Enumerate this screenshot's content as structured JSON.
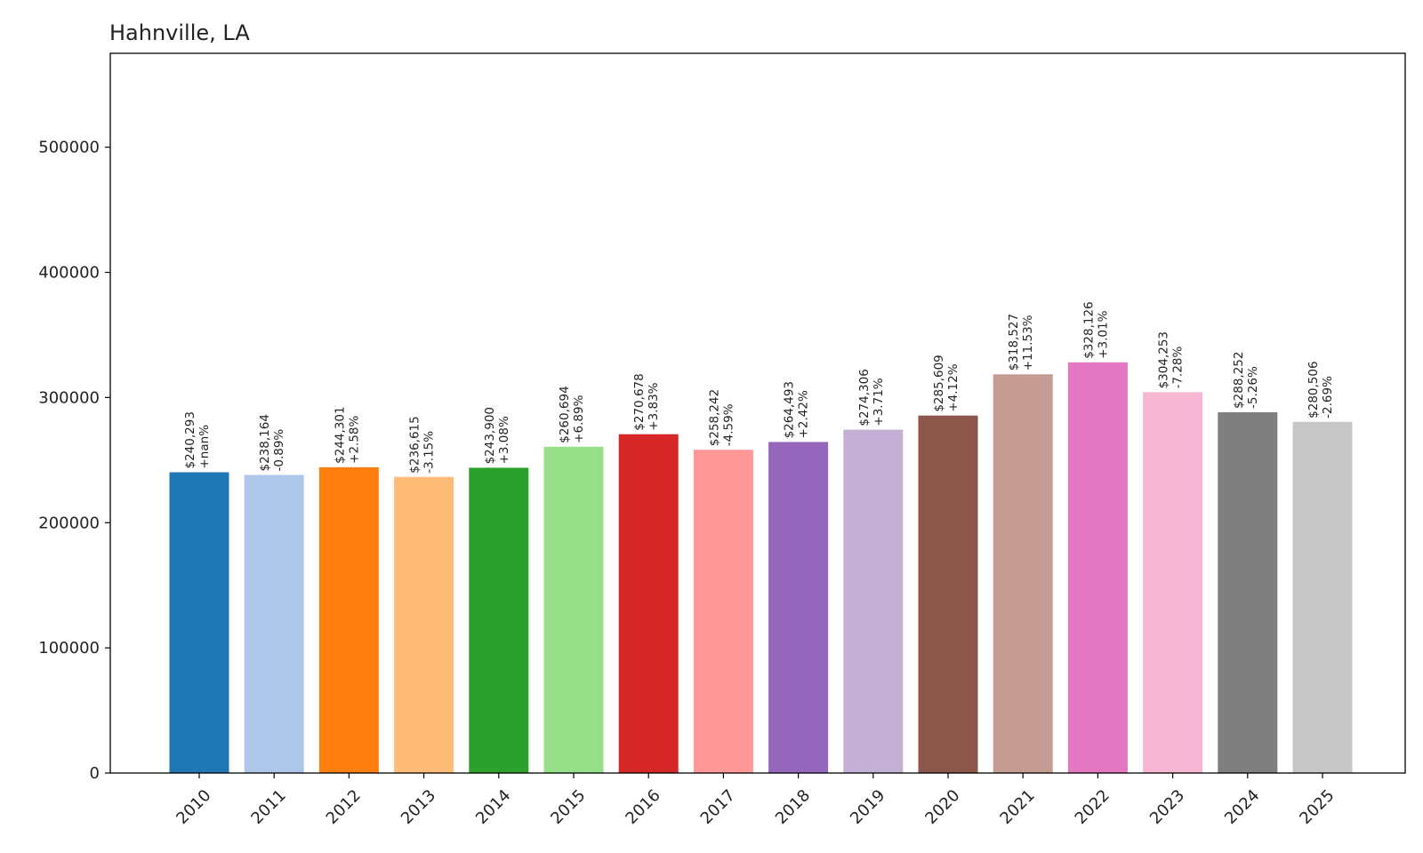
{
  "chart_data": {
    "type": "bar",
    "title": "Hahnville, LA",
    "xlabel": "",
    "ylabel": "",
    "ylim": [
      0,
      575000
    ],
    "yticks": [
      0,
      100000,
      200000,
      300000,
      400000,
      500000
    ],
    "grid": false,
    "categories": [
      "2010",
      "2011",
      "2012",
      "2013",
      "2014",
      "2015",
      "2016",
      "2017",
      "2018",
      "2019",
      "2020",
      "2021",
      "2022",
      "2023",
      "2024",
      "2025"
    ],
    "values": [
      240293,
      238164,
      244301,
      236615,
      243900,
      260694,
      270678,
      258242,
      264493,
      274306,
      285609,
      318527,
      328126,
      304253,
      288252,
      280506
    ],
    "value_labels": [
      "$240,293",
      "$238,164",
      "$244,301",
      "$236,615",
      "$243,900",
      "$260,694",
      "$270,678",
      "$258,242",
      "$264,493",
      "$274,306",
      "$285,609",
      "$318,527",
      "$328,126",
      "$304,253",
      "$288,252",
      "$280,506"
    ],
    "change_labels": [
      "+nan%",
      "-0.89%",
      "+2.58%",
      "-3.15%",
      "+3.08%",
      "+6.89%",
      "+3.83%",
      "-4.59%",
      "+2.42%",
      "+3.71%",
      "+4.12%",
      "+11.53%",
      "+3.01%",
      "-7.28%",
      "-5.26%",
      "-2.69%"
    ],
    "colors": [
      "#1f77b4",
      "#aec7e8",
      "#ff7f0e",
      "#ffbb78",
      "#2ca02c",
      "#98df8a",
      "#d62728",
      "#ff9896",
      "#9467bd",
      "#c5b0d5",
      "#8c564b",
      "#c49c94",
      "#e377c2",
      "#f7b6d2",
      "#7f7f7f",
      "#c7c7c7"
    ]
  }
}
